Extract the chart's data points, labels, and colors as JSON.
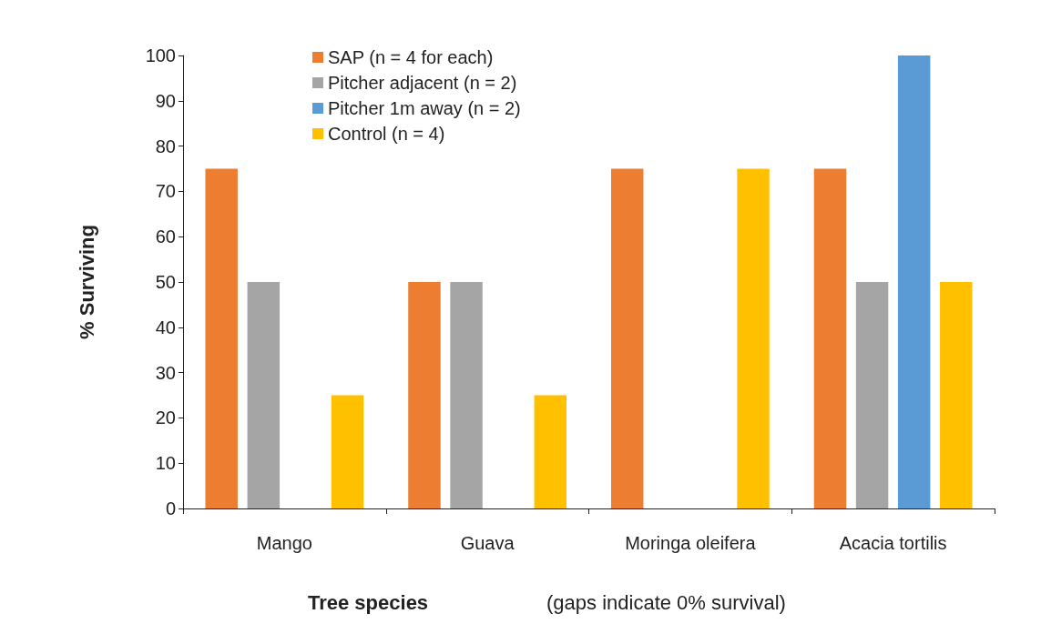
{
  "chart_data": {
    "type": "bar",
    "categories": [
      "Mango",
      "Guava",
      "Moringa oleifera",
      "Acacia tortilis"
    ],
    "series": [
      {
        "name": "SAP (n = 4 for each)",
        "color": "#ed7d31",
        "values": [
          75,
          50,
          75,
          75
        ]
      },
      {
        "name": "Pitcher adjacent (n = 2)",
        "color": "#a5a5a5",
        "values": [
          50,
          50,
          0,
          50
        ]
      },
      {
        "name": "Pitcher 1m away (n = 2)",
        "color": "#5b9bd5",
        "values": [
          0,
          0,
          0,
          100
        ]
      },
      {
        "name": "Control (n = 4)",
        "color": "#ffc000",
        "values": [
          25,
          25,
          75,
          50
        ]
      }
    ],
    "ylabel": "% Surviving",
    "xlabel": "Tree species",
    "annotations": [
      "(gaps indicate 0% survival)"
    ],
    "ylim": [
      0,
      100
    ],
    "yticks": [
      0,
      10,
      20,
      30,
      40,
      50,
      60,
      70,
      80,
      90,
      100
    ],
    "grid": false,
    "legend": "top left"
  }
}
